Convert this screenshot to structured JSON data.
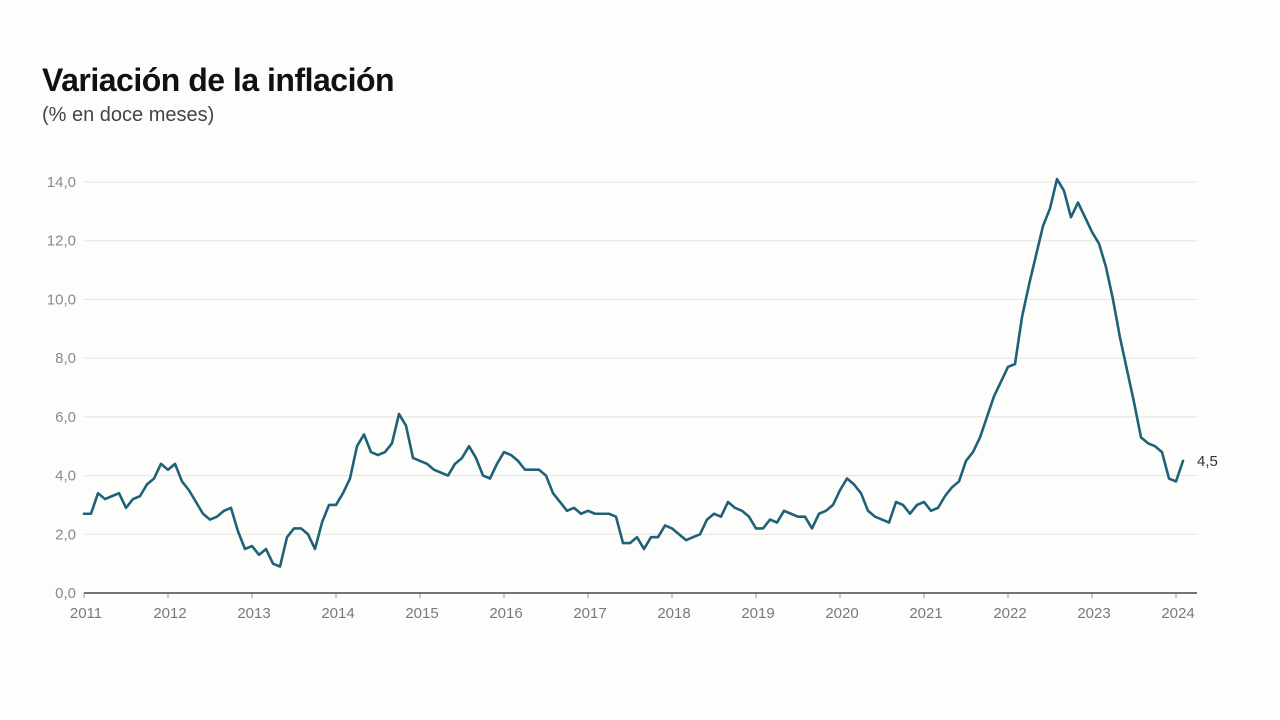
{
  "title": "Variación de la inflación",
  "subtitle": "(% en doce meses)",
  "colors": {
    "line": "#1f6278",
    "grid": "#e3e3e3",
    "axis": "#222222"
  },
  "chart_data": {
    "type": "line",
    "title": "Variación de la inflación",
    "subtitle": "(% en doce meses)",
    "xlabel": "",
    "ylabel": "",
    "ylim": [
      0,
      14
    ],
    "xlim": [
      2011,
      2024.3
    ],
    "grid": true,
    "y_ticks": [
      {
        "value": 0,
        "label": "0,0"
      },
      {
        "value": 2,
        "label": "2,0"
      },
      {
        "value": 4,
        "label": "4,0"
      },
      {
        "value": 6,
        "label": "6,0"
      },
      {
        "value": 8,
        "label": "8,0"
      },
      {
        "value": 10,
        "label": "10,0"
      },
      {
        "value": 12,
        "label": "12,0"
      },
      {
        "value": 14,
        "label": "14,0"
      }
    ],
    "x_ticks": [
      {
        "value": 2011,
        "label": "2011"
      },
      {
        "value": 2012,
        "label": "2012"
      },
      {
        "value": 2013,
        "label": "2013"
      },
      {
        "value": 2014,
        "label": "2014"
      },
      {
        "value": 2015,
        "label": "2015"
      },
      {
        "value": 2016,
        "label": "2016"
      },
      {
        "value": 2017,
        "label": "2017"
      },
      {
        "value": 2018,
        "label": "2018"
      },
      {
        "value": 2019,
        "label": "2019"
      },
      {
        "value": 2020,
        "label": "2020"
      },
      {
        "value": 2021,
        "label": "2021"
      },
      {
        "value": 2022,
        "label": "2022"
      },
      {
        "value": 2023,
        "label": "2023"
      },
      {
        "value": 2024,
        "label": "2024"
      }
    ],
    "series": [
      {
        "start": "2011-01",
        "end_label": "4,5",
        "values": [
          2.7,
          2.7,
          3.4,
          3.2,
          3.3,
          3.4,
          2.9,
          3.2,
          3.3,
          3.7,
          3.9,
          4.4,
          4.2,
          4.4,
          3.8,
          3.5,
          3.1,
          2.7,
          2.5,
          2.6,
          2.8,
          2.9,
          2.1,
          1.5,
          1.6,
          1.3,
          1.5,
          1.0,
          0.9,
          1.9,
          2.2,
          2.2,
          2.0,
          1.5,
          2.4,
          3.0,
          3.0,
          3.4,
          3.9,
          5.0,
          5.4,
          4.8,
          4.7,
          4.8,
          5.1,
          6.1,
          5.7,
          4.6,
          4.5,
          4.4,
          4.2,
          4.1,
          4.0,
          4.4,
          4.6,
          5.0,
          4.6,
          4.0,
          3.9,
          4.4,
          4.8,
          4.7,
          4.5,
          4.2,
          4.2,
          4.2,
          4.0,
          3.4,
          3.1,
          2.8,
          2.9,
          2.7,
          2.8,
          2.7,
          2.7,
          2.7,
          2.6,
          1.7,
          1.7,
          1.9,
          1.5,
          1.9,
          1.9,
          2.3,
          2.2,
          2.0,
          1.8,
          1.9,
          2.0,
          2.5,
          2.7,
          2.6,
          3.1,
          2.9,
          2.8,
          2.6,
          2.2,
          2.2,
          2.5,
          2.4,
          2.8,
          2.7,
          2.6,
          2.6,
          2.2,
          2.7,
          2.8,
          3.0,
          3.5,
          3.9,
          3.7,
          3.4,
          2.8,
          2.6,
          2.5,
          2.4,
          3.1,
          3.0,
          2.7,
          3.0,
          3.1,
          2.8,
          2.9,
          3.3,
          3.6,
          3.8,
          4.5,
          4.8,
          5.3,
          6.0,
          6.7,
          7.2,
          7.7,
          7.8,
          9.4,
          10.5,
          11.5,
          12.5,
          13.1,
          14.1,
          13.7,
          12.8,
          13.3,
          12.8,
          12.3,
          11.9,
          11.1,
          10.0,
          8.7,
          7.6,
          6.5,
          5.3,
          5.1,
          5.0,
          4.8,
          3.9,
          3.8,
          4.5
        ]
      }
    ]
  }
}
